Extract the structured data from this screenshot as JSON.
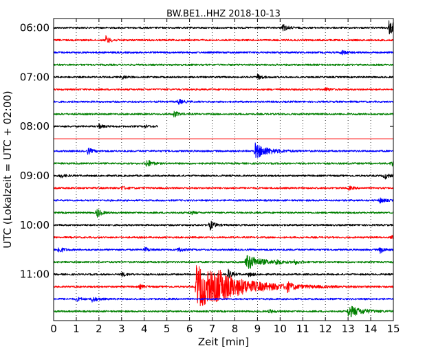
{
  "chart_data": {
    "type": "line",
    "title": "BW.BE1..HHZ 2018-10-13",
    "xlabel": "Zeit  [min]",
    "ylabel": "UTC (Lokalzeit = UTC + 02:00)",
    "xlim": [
      0,
      15
    ],
    "x_ticks": [
      "0",
      "1",
      "2",
      "3",
      "4",
      "5",
      "6",
      "7",
      "8",
      "9",
      "10",
      "11",
      "12",
      "13",
      "14",
      "15"
    ],
    "y_tick_labels": [
      "06:00",
      "07:00",
      "08:00",
      "09:00",
      "10:00",
      "11:00"
    ],
    "grid": "vertical dotted at each minute",
    "line_colors": [
      "#000000",
      "#ff0000",
      "#0000ff",
      "#008000"
    ],
    "traces": [
      {
        "start": "06:00",
        "color": "#000000",
        "events": [
          [
            10.1,
            6
          ],
          [
            14.8,
            10
          ]
        ]
      },
      {
        "start": "06:15",
        "color": "#ff0000",
        "events": [
          [
            2.3,
            6
          ]
        ]
      },
      {
        "start": "06:30",
        "color": "#0000ff",
        "events": [
          [
            12.7,
            4
          ]
        ]
      },
      {
        "start": "06:45",
        "color": "#008000",
        "events": []
      },
      {
        "start": "07:00",
        "color": "#000000",
        "events": [
          [
            3.0,
            3
          ],
          [
            9.0,
            4
          ]
        ]
      },
      {
        "start": "07:15",
        "color": "#ff0000",
        "events": [
          [
            12.0,
            3
          ]
        ]
      },
      {
        "start": "07:30",
        "color": "#0000ff",
        "events": [
          [
            5.5,
            4
          ]
        ]
      },
      {
        "start": "07:45",
        "color": "#008000",
        "events": [
          [
            5.3,
            5
          ]
        ]
      },
      {
        "start": "08:00",
        "color": "#000000",
        "events": [
          [
            2.0,
            3
          ],
          [
            4.0,
            2
          ]
        ],
        "end": 4.6
      },
      {
        "start": "08:15",
        "color": "#ff0000",
        "events": [],
        "gap": true
      },
      {
        "start": "08:30",
        "color": "#0000ff",
        "events": [
          [
            1.5,
            5
          ],
          [
            8.9,
            11
          ]
        ]
      },
      {
        "start": "08:45",
        "color": "#008000",
        "events": [
          [
            4.1,
            7
          ],
          [
            14.9,
            4
          ]
        ]
      },
      {
        "start": "09:00",
        "color": "#000000",
        "events": [
          [
            0.3,
            3
          ],
          [
            14.6,
            5
          ]
        ]
      },
      {
        "start": "09:15",
        "color": "#ff0000",
        "events": [
          [
            3.0,
            3
          ],
          [
            13.0,
            3
          ]
        ]
      },
      {
        "start": "09:30",
        "color": "#0000ff",
        "events": [
          [
            14.4,
            4
          ]
        ]
      },
      {
        "start": "09:45",
        "color": "#008000",
        "events": [
          [
            1.9,
            7
          ],
          [
            6.0,
            3
          ]
        ]
      },
      {
        "start": "10:00",
        "color": "#000000",
        "events": [
          [
            6.9,
            7
          ]
        ]
      },
      {
        "start": "10:15",
        "color": "#ff0000",
        "events": [
          [
            14.9,
            5
          ]
        ]
      },
      {
        "start": "10:30",
        "color": "#0000ff",
        "events": [
          [
            0.2,
            6
          ],
          [
            4.0,
            4
          ],
          [
            5.5,
            4
          ],
          [
            14.4,
            5
          ]
        ]
      },
      {
        "start": "10:45",
        "color": "#008000",
        "events": [
          [
            8.5,
            12
          ],
          [
            9.8,
            4
          ],
          [
            10.6,
            4
          ]
        ]
      },
      {
        "start": "11:00",
        "color": "#000000",
        "events": [
          [
            3.0,
            3
          ],
          [
            7.7,
            7
          ],
          [
            8.6,
            3
          ]
        ]
      },
      {
        "start": "11:15",
        "color": "#ff0000",
        "events": [
          [
            3.8,
            3
          ],
          [
            6.3,
            32
          ],
          [
            7.2,
            9
          ],
          [
            10.3,
            6
          ]
        ]
      },
      {
        "start": "11:30",
        "color": "#0000ff",
        "events": [
          [
            1.0,
            3
          ],
          [
            1.7,
            5
          ]
        ]
      },
      {
        "start": "11:45",
        "color": "#008000",
        "events": [
          [
            9.5,
            3
          ],
          [
            13.0,
            9
          ]
        ]
      }
    ]
  }
}
